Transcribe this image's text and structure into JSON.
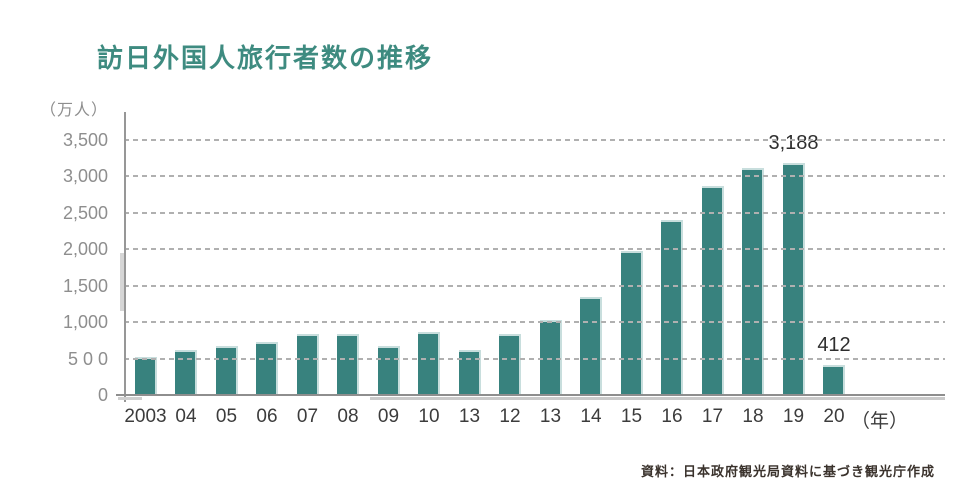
{
  "title": "訪日外国人旅行者数の推移",
  "source": "資料：日本政府観光局資料に基づき観光庁作成",
  "colors": {
    "title": "#3e8b80",
    "bar": "#38827e",
    "bar_edge": "#c8dedd",
    "grid": "#b0b0b0",
    "axis": "#8e8e8e",
    "y_label": "#8e8e8e",
    "x_label": "#3c3c3c",
    "annotation": "#2e2e2e",
    "source_text": "#3a322c",
    "background": "#ffffff"
  },
  "chart_data": {
    "type": "bar",
    "title": "訪日外国人旅行者数の推移",
    "categories": [
      "2003",
      "04",
      "05",
      "06",
      "07",
      "08",
      "09",
      "10",
      "13",
      "12",
      "13",
      "14",
      "15",
      "16",
      "17",
      "18",
      "19",
      "20"
    ],
    "values": [
      521,
      614,
      673,
      733,
      835,
      835,
      679,
      861,
      622,
      836,
      1036,
      1341,
      1974,
      2404,
      2869,
      3119,
      3188,
      412
    ],
    "annotations": [
      {
        "index": 16,
        "label": "3,188"
      },
      {
        "index": 17,
        "label": "412"
      }
    ],
    "x_axis": {
      "unit": "（年）"
    },
    "y_axis": {
      "unit": "（万人）",
      "tick_labels": [
        "3,500",
        "3,000",
        "2,500",
        "2,000",
        "1,500",
        "1,000",
        "5 0 0",
        "0"
      ],
      "tick_values": [
        3500,
        3000,
        2500,
        2000,
        1500,
        1000,
        500,
        0
      ]
    },
    "ylim": [
      0,
      3500
    ],
    "xlabel": "（年）",
    "ylabel": "（万人）",
    "grid": "horizontal-dashed",
    "legend": "none",
    "bar_color": "#38827e"
  }
}
